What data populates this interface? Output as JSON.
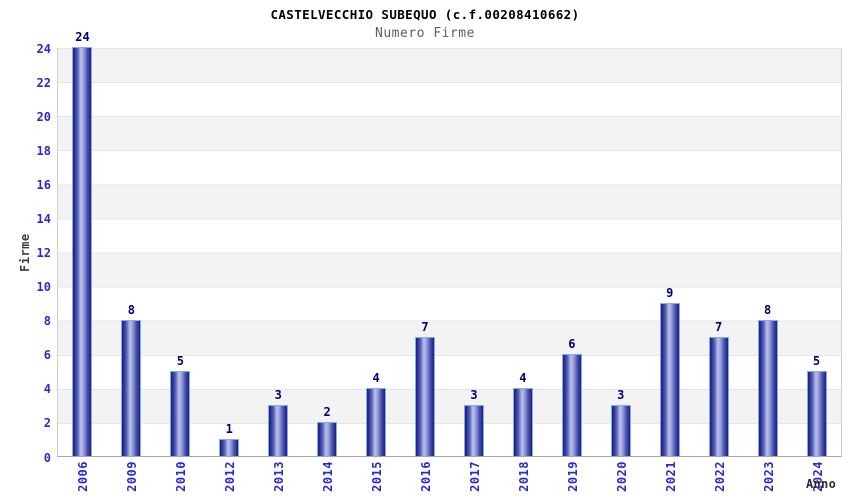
{
  "header": {
    "title": "CASTELVECCHIO SUBEQUO (c.f.00208410662)",
    "subtitle": "Numero Firme"
  },
  "axes": {
    "ylabel": "Firme",
    "xlabel": "Anno"
  },
  "chart_data": {
    "type": "bar",
    "title": "CASTELVECCHIO SUBEQUO (c.f.00208410662)",
    "subtitle": "Numero Firme",
    "xlabel": "Anno",
    "ylabel": "Firme",
    "categories": [
      "2006",
      "2009",
      "2010",
      "2012",
      "2013",
      "2014",
      "2015",
      "2016",
      "2017",
      "2018",
      "2019",
      "2020",
      "2021",
      "2022",
      "2023",
      "2024"
    ],
    "values": [
      24,
      8,
      5,
      1,
      3,
      2,
      4,
      7,
      3,
      4,
      6,
      3,
      9,
      7,
      8,
      5
    ],
    "ylim": [
      0,
      24
    ],
    "ytick_step": 2,
    "grid": "horizontal-bands-alternating",
    "legend": "none",
    "colors": {
      "bar_dark": "#1d1d87",
      "bar_light": "#b9c1ec",
      "bar_border": "#7fb2e4",
      "value_label": "#000070",
      "tick_label": "#2929cc",
      "x_tick_label": "#2a2ad0",
      "band_gray": "#f3f3f3",
      "band_white": "#ffffff",
      "gridline": "#e5e5e5",
      "title_color": "#000000",
      "subtitle_color": "#5f5f5f",
      "axis_title_color": "#3c3c3c"
    }
  }
}
